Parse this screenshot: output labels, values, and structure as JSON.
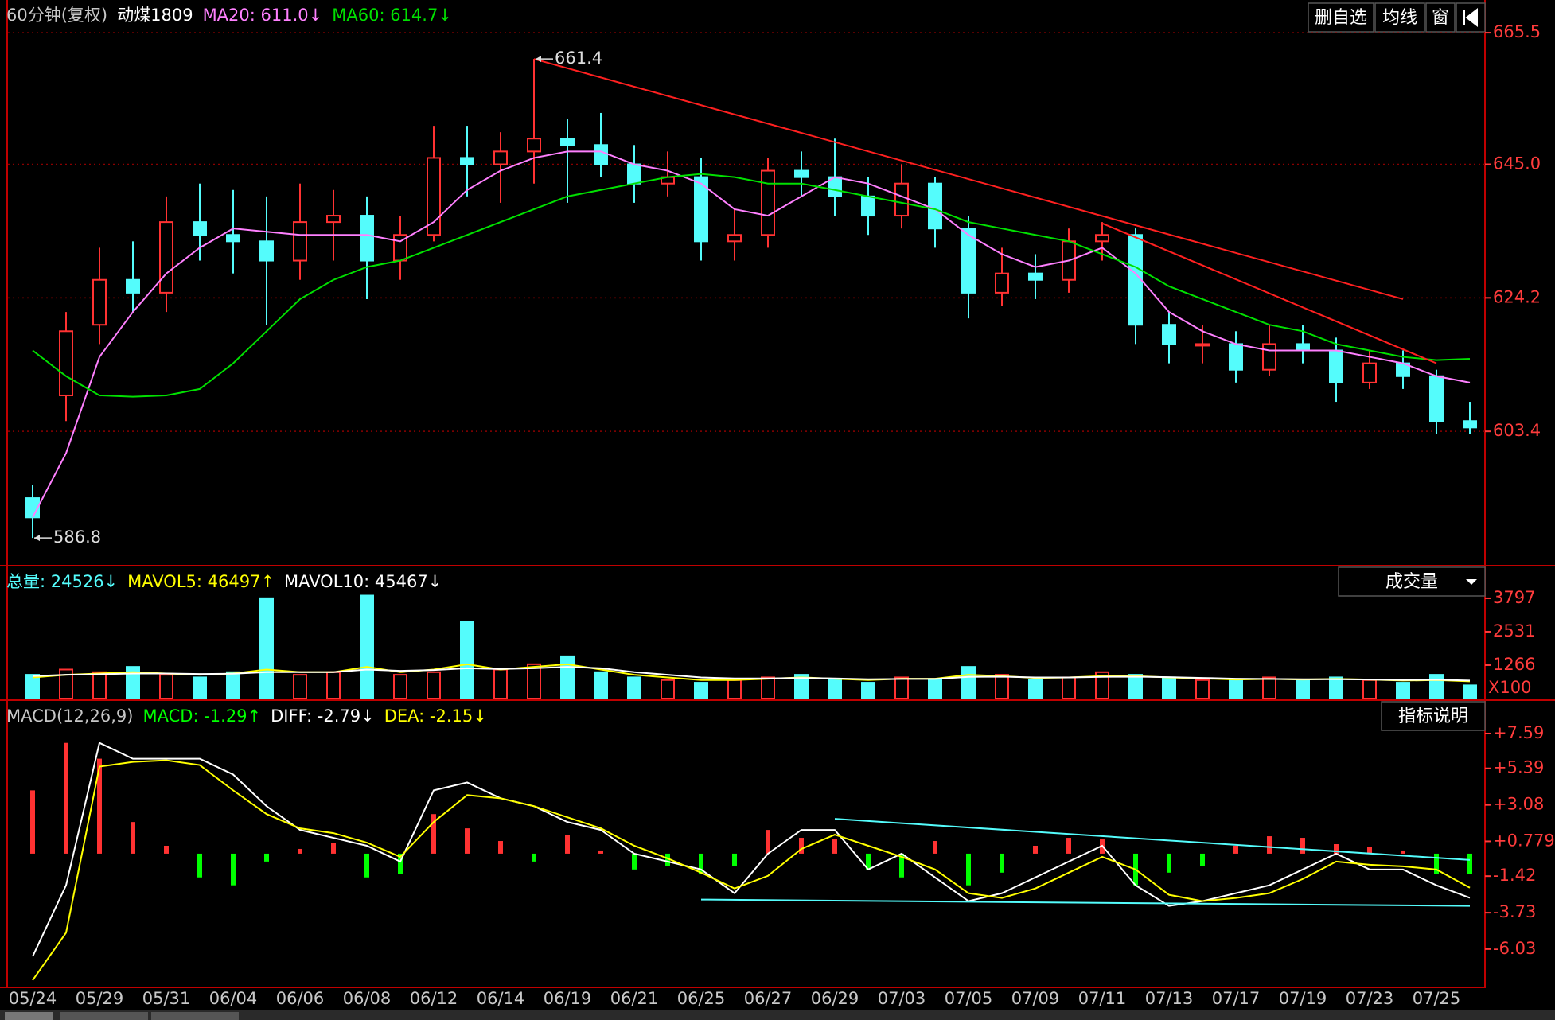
{
  "chart_data": [
    {
      "type": "candlestick",
      "title": "60分钟(复权)",
      "series": [
        {
          "name": "动煤1809",
          "up_color": "#ff3232",
          "down_color": "#54fcfc",
          "open": [
            593,
            609,
            620,
            627,
            625,
            636,
            634,
            633,
            630,
            636,
            637,
            630,
            634,
            646,
            645,
            647,
            649,
            648,
            645,
            642,
            643,
            633,
            634,
            644,
            643,
            640,
            637,
            642,
            635,
            625,
            628,
            627,
            633,
            634,
            620,
            617,
            617,
            613,
            617,
            616,
            611,
            614,
            612,
            605
          ],
          "high": [
            595,
            622,
            632,
            633,
            640,
            642,
            641,
            640,
            642,
            641,
            640,
            637,
            651,
            651,
            650,
            661.4,
            652,
            653,
            648,
            647,
            646,
            638,
            646,
            647,
            649,
            643,
            645,
            643,
            637,
            632,
            631,
            635,
            636,
            635,
            622,
            620,
            619,
            620,
            620,
            618,
            616,
            616,
            613,
            608
          ],
          "low": [
            586.8,
            605,
            617,
            622,
            622,
            630,
            628,
            620,
            627,
            630,
            624,
            627,
            633,
            640,
            639,
            642,
            639,
            643,
            639,
            640,
            630,
            630,
            632,
            640,
            637,
            634,
            635,
            632,
            621,
            623,
            624,
            625,
            630,
            617,
            614,
            614,
            611,
            612,
            614,
            608,
            610,
            610,
            603,
            603
          ],
          "close": [
            590,
            619,
            627,
            625,
            636,
            634,
            633,
            630,
            636,
            637,
            630,
            634,
            646,
            645,
            647,
            649,
            648,
            645,
            642,
            643,
            633,
            634,
            644,
            643,
            640,
            637,
            642,
            635,
            625,
            628,
            627,
            633,
            634,
            620,
            617,
            617,
            613,
            617,
            616,
            611,
            614,
            612,
            605,
            604
          ]
        },
        {
          "name": "MA20: 611.0↓",
          "color": "#ff80ff",
          "values": [
            590,
            600,
            615,
            622,
            628,
            632,
            635,
            634.5,
            634,
            634,
            634,
            633,
            636,
            641,
            644,
            646,
            647,
            647,
            645,
            644,
            642,
            638,
            637,
            640,
            643,
            642,
            640,
            638,
            634,
            631,
            629,
            630,
            632,
            628,
            622,
            619,
            617,
            616,
            616,
            616,
            615,
            614,
            612,
            611
          ]
        },
        {
          "name": "MA60: 614.7↓",
          "color": "#00e000",
          "values": [
            616,
            612,
            609,
            608.8,
            609,
            610,
            614,
            619,
            624,
            627,
            629,
            630,
            632,
            634,
            636,
            638,
            640,
            641,
            642,
            643,
            643.5,
            643,
            642,
            642,
            641,
            640,
            639,
            638,
            636,
            635,
            634,
            633,
            631,
            629,
            626,
            624,
            622,
            620,
            619,
            617,
            616,
            615,
            614.5,
            614.7
          ]
        }
      ],
      "trend_lines": [
        {
          "color": "#ff2020",
          "x": [
            15,
            41
          ],
          "y": [
            661.4,
            624
          ]
        },
        {
          "color": "#ff2020",
          "x": [
            32,
            42
          ],
          "y": [
            635.8,
            614
          ]
        }
      ],
      "annotations": [
        {
          "index": 15,
          "value": 661.4
        },
        {
          "index": 0,
          "value": 586.8
        }
      ],
      "ylim": [
        582.6,
        669.6
      ],
      "yticks": [
        603.4,
        624.2,
        {
          "value": 645,
          "label": "645.0"
        },
        665.5
      ],
      "grid": true
    },
    {
      "type": "volume",
      "unit_label": "X100",
      "button": "成交量",
      "series": [
        {
          "name": "总量: 24526↓",
          "values": [
            900,
            1100,
            1000,
            1200,
            900,
            800,
            1000,
            3800,
            900,
            1000,
            3900,
            900,
            1000,
            2900,
            1100,
            1300,
            1600,
            1000,
            800,
            700,
            600,
            700,
            800,
            900,
            700,
            600,
            800,
            700,
            1200,
            900,
            700,
            800,
            1000,
            900,
            800,
            700,
            700,
            800,
            700,
            800,
            700,
            600,
            900,
            500
          ]
        },
        {
          "name": "MAVOL5: 46497↑",
          "color": "#ffff00",
          "values": [
            800,
            900,
            950,
            1000,
            950,
            900,
            950,
            1100,
            1000,
            1000,
            1200,
            1000,
            1100,
            1300,
            1100,
            1200,
            1300,
            1100,
            900,
            800,
            700,
            700,
            750,
            800,
            750,
            700,
            750,
            750,
            900,
            850,
            780,
            800,
            850,
            850,
            800,
            760,
            720,
            740,
            720,
            740,
            720,
            680,
            700,
            650
          ]
        },
        {
          "name": "MAVOL10: 45467↓",
          "color": "#ffffff",
          "values": [
            850,
            900,
            920,
            950,
            950,
            930,
            940,
            1000,
            1000,
            1000,
            1100,
            1050,
            1080,
            1150,
            1120,
            1150,
            1200,
            1150,
            1000,
            900,
            800,
            760,
            760,
            780,
            760,
            730,
            740,
            740,
            820,
            830,
            800,
            800,
            820,
            830,
            810,
            780,
            750,
            740,
            730,
            730,
            720,
            700,
            710,
            680
          ]
        }
      ],
      "ylim": [
        0,
        4970
      ],
      "yticks": [
        1266,
        2531,
        3797
      ]
    },
    {
      "type": "macd",
      "title": "MACD(12,26,9)",
      "button": "指标说明",
      "categories": [
        "05/24",
        null,
        "05/29",
        null,
        "05/31",
        null,
        "06/04",
        null,
        "06/06",
        null,
        "06/08",
        null,
        "06/12",
        null,
        "06/14",
        null,
        "06/19",
        null,
        "06/21",
        null,
        "06/25",
        null,
        "06/27",
        null,
        "06/29",
        null,
        "07/03",
        null,
        "07/05",
        null,
        "07/09",
        null,
        "07/11",
        null,
        "07/13",
        null,
        "07/17",
        null,
        "07/19",
        null,
        "07/23",
        null,
        "07/25",
        null
      ],
      "series": [
        {
          "name": "MACD: -1.29↑",
          "pos_color": "#ff3232",
          "neg_color": "#00ff00",
          "values": [
            4,
            7,
            6,
            2,
            0.5,
            -1.5,
            -2,
            -0.5,
            0.3,
            0.7,
            -1.5,
            -1.3,
            2.5,
            1.6,
            0.8,
            -0.5,
            1.2,
            0.2,
            -1,
            -0.8,
            -1.3,
            -0.8,
            1.5,
            1,
            0.9,
            -1,
            -1.5,
            0.8,
            -2,
            -1.2,
            0.5,
            1,
            0.9,
            -2,
            -1.2,
            -0.8,
            0.5,
            1.1,
            1,
            0.6,
            0.4,
            0.2,
            -1.3,
            -1.29
          ]
        },
        {
          "name": "DIFF: -2.79↓",
          "color": "#ffffff",
          "values": [
            -6.5,
            -2,
            7,
            6,
            6,
            6,
            5,
            3,
            1.5,
            1,
            0.5,
            -0.5,
            4,
            4.5,
            3.5,
            3,
            2,
            1.5,
            0,
            -0.5,
            -1,
            -2.5,
            0,
            1.5,
            1.5,
            -1,
            0,
            -1.5,
            -3,
            -2.5,
            -1.5,
            -0.5,
            0.5,
            -2,
            -3.3,
            -3,
            -2.5,
            -2,
            -1,
            0,
            -1,
            -1,
            -2,
            -2.79
          ]
        },
        {
          "name": "DEA: -2.15↓",
          "color": "#ffff00",
          "values": [
            -8,
            -5,
            5.5,
            5.8,
            5.9,
            5.6,
            4,
            2.5,
            1.6,
            1.3,
            0.7,
            -0.2,
            2,
            3.7,
            3.5,
            3,
            2.3,
            1.6,
            0.5,
            -0.3,
            -1.2,
            -2.2,
            -1.4,
            0.3,
            1.2,
            0.5,
            -0.2,
            -1,
            -2.5,
            -2.8,
            -2.2,
            -1.2,
            -0.2,
            -1,
            -2.6,
            -3,
            -2.8,
            -2.5,
            -1.6,
            -0.5,
            -0.7,
            -0.8,
            -1,
            -2.15
          ]
        }
      ],
      "trend_lines": [
        {
          "color": "#54fcfc",
          "x": [
            20,
            43
          ],
          "y": [
            -2.9,
            -3.3
          ]
        },
        {
          "color": "#54fcfc",
          "x": [
            24,
            43
          ],
          "y": [
            2.2,
            -0.4
          ]
        }
      ],
      "ylim": [
        -8.4,
        9.6
      ],
      "yticks": [
        -6.03,
        -3.73,
        -1.42,
        {
          "value": 0.779,
          "label": "+0.779"
        },
        {
          "value": 3.08,
          "label": "+3.08"
        },
        {
          "value": 5.39,
          "label": "+5.39"
        },
        {
          "value": 7.59,
          "label": "+7.59"
        }
      ]
    }
  ],
  "toolbar": [
    "删自选",
    "均线",
    "窗"
  ]
}
